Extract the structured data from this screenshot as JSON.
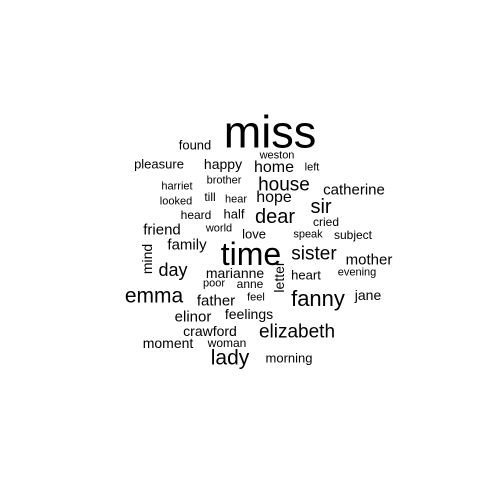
{
  "word_cloud": {
    "text_color": "#000000",
    "background_color": "#ffffff",
    "words": [
      {
        "text": "miss",
        "weight": 100
      },
      {
        "text": "time",
        "weight": 70
      },
      {
        "text": "fanny",
        "weight": 48
      },
      {
        "text": "emma",
        "weight": 46
      },
      {
        "text": "lady",
        "weight": 46
      },
      {
        "text": "house",
        "weight": 42
      },
      {
        "text": "dear",
        "weight": 44
      },
      {
        "text": "sister",
        "weight": 42
      },
      {
        "text": "sir",
        "weight": 44
      },
      {
        "text": "elizabeth",
        "weight": 42
      },
      {
        "text": "day",
        "weight": 40
      },
      {
        "text": "home",
        "weight": 36
      },
      {
        "text": "hope",
        "weight": 36
      },
      {
        "text": "mother",
        "weight": 34
      },
      {
        "text": "catherine",
        "weight": 34
      },
      {
        "text": "family",
        "weight": 34
      },
      {
        "text": "friend",
        "weight": 34
      },
      {
        "text": "elinor",
        "weight": 34
      },
      {
        "text": "father",
        "weight": 34
      },
      {
        "text": "feelings",
        "weight": 32
      },
      {
        "text": "happy",
        "weight": 32
      },
      {
        "text": "marianne",
        "weight": 32
      },
      {
        "text": "crawford",
        "weight": 30
      },
      {
        "text": "moment",
        "weight": 30
      },
      {
        "text": "jane",
        "weight": 30
      },
      {
        "text": "mind",
        "weight": 30
      },
      {
        "text": "letter",
        "weight": 30
      },
      {
        "text": "heart",
        "weight": 28
      },
      {
        "text": "pleasure",
        "weight": 28
      },
      {
        "text": "morning",
        "weight": 28
      },
      {
        "text": "found",
        "weight": 28
      },
      {
        "text": "love",
        "weight": 28
      },
      {
        "text": "half",
        "weight": 28
      },
      {
        "text": "woman",
        "weight": 26
      },
      {
        "text": "anne",
        "weight": 26
      },
      {
        "text": "heard",
        "weight": 26
      },
      {
        "text": "till",
        "weight": 26
      },
      {
        "text": "subject",
        "weight": 26
      },
      {
        "text": "cried",
        "weight": 26
      },
      {
        "text": "evening",
        "weight": 24
      },
      {
        "text": "speak",
        "weight": 24
      },
      {
        "text": "looked",
        "weight": 24
      },
      {
        "text": "hear",
        "weight": 24
      },
      {
        "text": "left",
        "weight": 24
      },
      {
        "text": "weston",
        "weight": 24
      },
      {
        "text": "harriet",
        "weight": 24
      },
      {
        "text": "brother",
        "weight": 24
      },
      {
        "text": "world",
        "weight": 24
      },
      {
        "text": "poor",
        "weight": 24
      },
      {
        "text": "feel",
        "weight": 24
      }
    ]
  }
}
